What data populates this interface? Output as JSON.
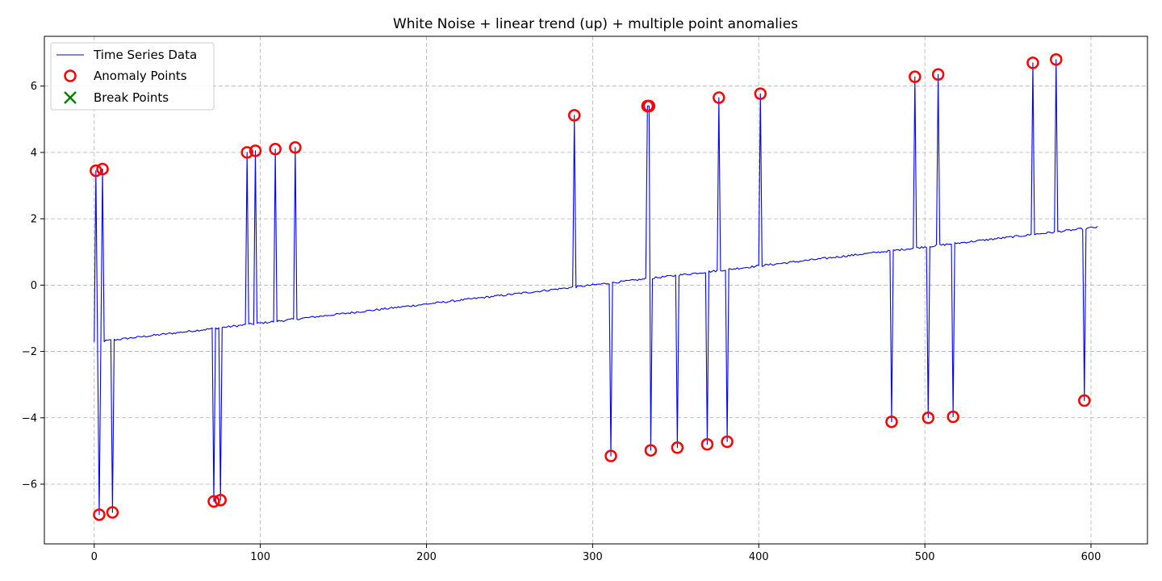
{
  "chart_data": {
    "type": "line",
    "title": "White Noise + linear trend (up) + multiple point anomalies",
    "xlabel": "",
    "ylabel": "",
    "xlim": [
      -30,
      634
    ],
    "ylim": [
      -7.8,
      7.5
    ],
    "x_ticks": [
      0,
      100,
      200,
      300,
      400,
      500,
      600
    ],
    "y_ticks": [
      -6,
      -4,
      -2,
      0,
      2,
      4,
      6
    ],
    "x_tick_labels": [
      "0",
      "100",
      "200",
      "300",
      "400",
      "500",
      "600"
    ],
    "y_tick_labels": [
      "−6",
      "−4",
      "−2",
      "0",
      "2",
      "4",
      "6"
    ],
    "grid": true,
    "legend_position": "top-left",
    "trend": {
      "x_start": 0,
      "y_start": -1.72,
      "x_end": 604,
      "y_end": 1.75
    },
    "series": [
      {
        "name": "Time Series Data",
        "kind": "line",
        "color": "#0000ff",
        "n_points": 605
      },
      {
        "name": "Anomaly Points",
        "kind": "scatter",
        "marker": "circle",
        "color": "#ff0000",
        "points": [
          {
            "x": 1,
            "y": 3.45
          },
          {
            "x": 3,
            "y": -6.92
          },
          {
            "x": 5,
            "y": 3.5
          },
          {
            "x": 11,
            "y": -6.85
          },
          {
            "x": 72,
            "y": -6.52
          },
          {
            "x": 76,
            "y": -6.48
          },
          {
            "x": 92,
            "y": 4.0
          },
          {
            "x": 97,
            "y": 4.05
          },
          {
            "x": 109,
            "y": 4.1
          },
          {
            "x": 121,
            "y": 4.15
          },
          {
            "x": 289,
            "y": 5.12
          },
          {
            "x": 311,
            "y": -5.15
          },
          {
            "x": 333,
            "y": 5.4
          },
          {
            "x": 334,
            "y": 5.4
          },
          {
            "x": 335,
            "y": -4.98
          },
          {
            "x": 351,
            "y": -4.9
          },
          {
            "x": 369,
            "y": -4.8
          },
          {
            "x": 376,
            "y": 5.65
          },
          {
            "x": 381,
            "y": -4.72
          },
          {
            "x": 401,
            "y": 5.77
          },
          {
            "x": 480,
            "y": -4.12
          },
          {
            "x": 494,
            "y": 6.28
          },
          {
            "x": 502,
            "y": -4.0
          },
          {
            "x": 508,
            "y": 6.35
          },
          {
            "x": 517,
            "y": -3.97
          },
          {
            "x": 565,
            "y": 6.7
          },
          {
            "x": 579,
            "y": 6.8
          },
          {
            "x": 596,
            "y": -3.48
          }
        ]
      },
      {
        "name": "Break Points",
        "kind": "scatter",
        "marker": "x",
        "color": "#008000",
        "points": []
      }
    ]
  }
}
